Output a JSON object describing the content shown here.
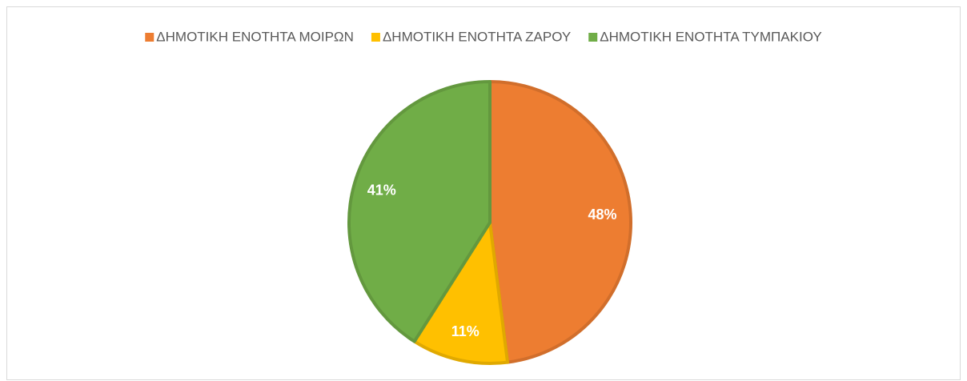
{
  "chart_data": {
    "type": "pie",
    "categories": [
      "ΔΗΜΟΤΙΚΗ ΕΝΟΤΗΤΑ ΜΟΙΡΩΝ",
      "ΔΗΜΟΤΙΚΗ ΕΝΟΤΗΤΑ ΖΑΡΟΥ",
      "ΔΗΜΟΤΙΚΗ ΕΝΟΤΗΤΑ ΤΥΜΠΑΚΙΟΥ"
    ],
    "values": [
      48,
      11,
      41
    ],
    "value_labels": [
      "48%",
      "11%",
      "41%"
    ],
    "colors": [
      "#ed7d31",
      "#ffc000",
      "#70ad47"
    ],
    "legend": "top"
  }
}
